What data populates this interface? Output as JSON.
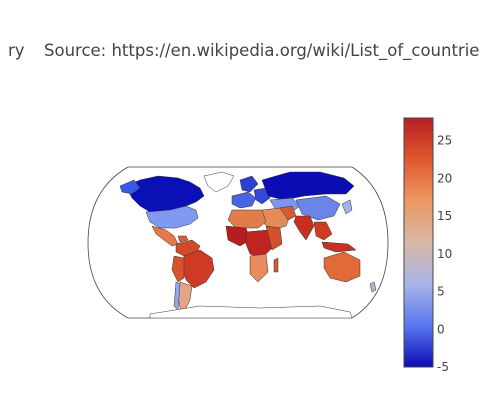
{
  "title": {
    "left_fragment": "ry",
    "source_text": "Source: https://en.wikipedia.org/wiki/List_of_countries_b"
  },
  "colorbar": {
    "min": -5,
    "max": 28,
    "tick_labels": [
      "25",
      "20",
      "15",
      "10",
      "5",
      "0",
      "-5"
    ],
    "tick_values": [
      25,
      20,
      15,
      10,
      5,
      0,
      -5
    ],
    "colorscale": [
      "#0a0cb4",
      "#5b77f0",
      "#a9b4e6",
      "#d9b8a6",
      "#ec9862",
      "#e0582e",
      "#b81e23"
    ]
  },
  "map": {
    "projection": "robinson",
    "land_outline_color": "#444444",
    "frame_color": "#444444"
  }
}
